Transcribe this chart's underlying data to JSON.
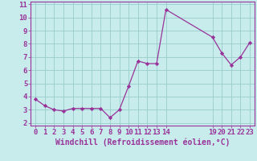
{
  "x": [
    0,
    1,
    2,
    3,
    4,
    5,
    6,
    7,
    8,
    9,
    10,
    11,
    12,
    13,
    14,
    19,
    20,
    21,
    22,
    23
  ],
  "y": [
    3.8,
    3.3,
    3.0,
    2.9,
    3.1,
    3.1,
    3.1,
    3.1,
    2.4,
    3.0,
    4.8,
    6.7,
    6.5,
    6.5,
    10.6,
    8.5,
    7.3,
    6.4,
    7.0,
    8.1
  ],
  "line_color": "#993399",
  "marker_color": "#993399",
  "bg_color": "#c8ecec",
  "grid_color": "#99cccc",
  "xlabel": "Windchill (Refroidissement éolien,°C)",
  "xlim": [
    -0.5,
    23.5
  ],
  "ylim": [
    1.8,
    11.2
  ],
  "yticks": [
    2,
    3,
    4,
    5,
    6,
    7,
    8,
    9,
    10,
    11
  ],
  "xticks": [
    0,
    1,
    2,
    3,
    4,
    5,
    6,
    7,
    8,
    9,
    10,
    11,
    12,
    13,
    14,
    19,
    20,
    21,
    22,
    23
  ],
  "tick_fontsize": 6.5,
  "xlabel_fontsize": 7.0
}
